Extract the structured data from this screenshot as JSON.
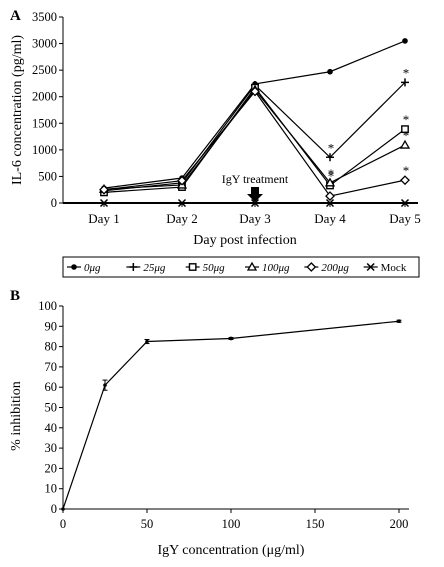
{
  "chart_data": [
    {
      "panel_label": "A",
      "type": "line",
      "categories": [
        "Day 1",
        "Day 2",
        "Day 3",
        "Day 4",
        "Day 5"
      ],
      "ylabel": "IL-6 concentration (pg/ml)",
      "xlabel": "Day post infection",
      "ylim": [
        0,
        3500
      ],
      "yticks": [
        "0",
        "500",
        "1000",
        "1500",
        "2000",
        "2500",
        "3000",
        "3500"
      ],
      "annotation": "IgY treatment",
      "annotation_at": "Day 3",
      "significance_marks": [
        {
          "series": "25μg",
          "category": "Day 4",
          "text": "*"
        },
        {
          "series": "50μg",
          "category": "Day 4",
          "text": "*"
        },
        {
          "series": "100μg",
          "category": "Day 4",
          "text": "*"
        },
        {
          "series": "25μg",
          "category": "Day 5",
          "text": "*"
        },
        {
          "series": "50μg",
          "category": "Day 5",
          "text": "*"
        },
        {
          "series": "100μg",
          "category": "Day 5",
          "text": "*"
        },
        {
          "series": "200μg",
          "category": "Day 5",
          "text": "*"
        }
      ],
      "legend_position": "below plot",
      "series": [
        {
          "name": "0μg",
          "marker": "circle",
          "values": [
            280,
            470,
            2240,
            2470,
            3050
          ]
        },
        {
          "name": "25μg",
          "marker": "plus",
          "values": [
            230,
            380,
            2220,
            860,
            2270
          ]
        },
        {
          "name": "50μg",
          "marker": "square",
          "values": [
            200,
            300,
            2170,
            330,
            1390
          ]
        },
        {
          "name": "100μg",
          "marker": "triangle",
          "values": [
            260,
            340,
            2130,
            380,
            1090
          ]
        },
        {
          "name": "200μg",
          "marker": "diamond",
          "values": [
            250,
            420,
            2100,
            130,
            430
          ]
        },
        {
          "name": "Mock",
          "marker": "x",
          "values": [
            0,
            0,
            0,
            0,
            0
          ]
        }
      ]
    },
    {
      "panel_label": "B",
      "type": "line",
      "x": [
        0,
        25,
        50,
        100,
        200
      ],
      "values": [
        0,
        61,
        82.5,
        84,
        92.5
      ],
      "errors": [
        0,
        2.5,
        1,
        0.5,
        0.5
      ],
      "xlabel": "IgY concentration (μg/ml)",
      "ylabel": "% inhibition",
      "xlim": [
        0,
        200
      ],
      "ylim": [
        0,
        100
      ],
      "xticks": [
        "0",
        "50",
        "100",
        "150",
        "200"
      ],
      "yticks": [
        "0",
        "10",
        "20",
        "30",
        "40",
        "50",
        "60",
        "70",
        "80",
        "90",
        "100"
      ]
    }
  ]
}
